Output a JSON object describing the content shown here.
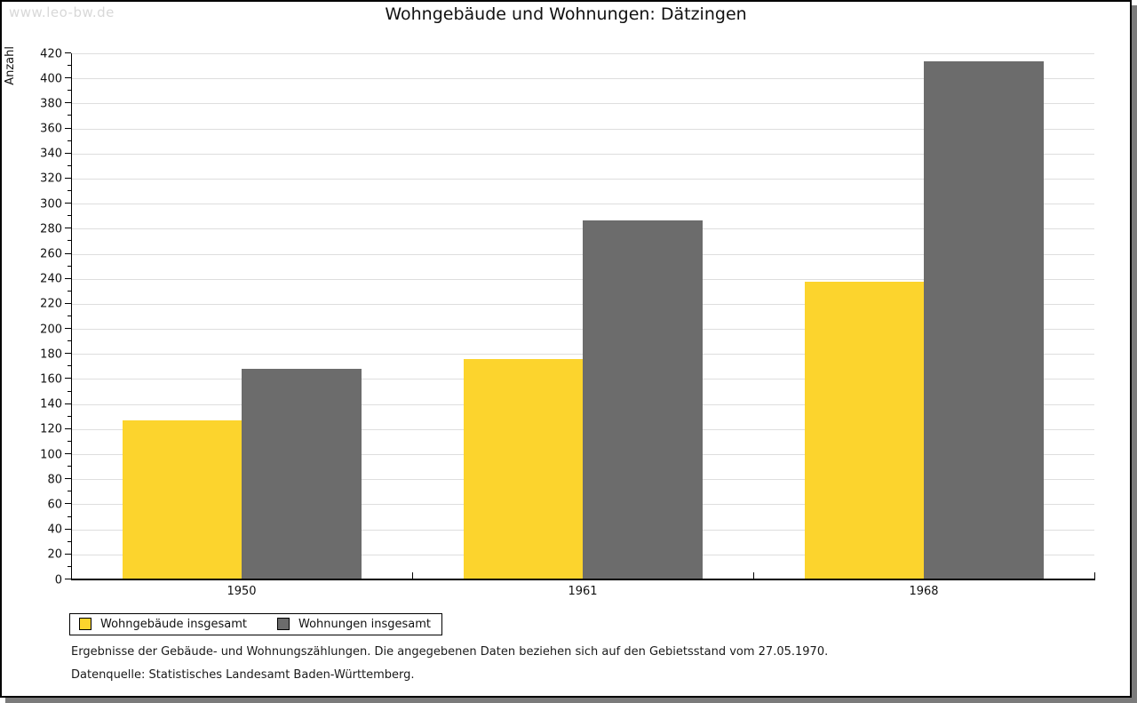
{
  "watermark": "www.leo-bw.de",
  "chart_data": {
    "type": "bar",
    "title": "Wohngebäude und Wohnungen: Dätzingen",
    "xlabel": "",
    "ylabel": "Anzahl",
    "categories": [
      "1950",
      "1961",
      "1968"
    ],
    "series": [
      {
        "name": "Wohngebäude insgesamt",
        "color": "#fcd42d",
        "values": [
          127,
          176,
          238
        ]
      },
      {
        "name": "Wohnungen insgesamt",
        "color": "#6c6c6c",
        "values": [
          168,
          287,
          414
        ]
      }
    ],
    "ylim": [
      0,
      420
    ],
    "ytick_step": 20,
    "y_minor_tick_step": 10,
    "grid": "horizontal-major-only",
    "legend_position": "bottom-left"
  },
  "footer": {
    "line1": "Ergebnisse der Gebäude- und Wohnungszählungen. Die angegebenen Daten beziehen sich auf den Gebietsstand vom 27.05.1970.",
    "line2": "Datenquelle: Statistisches Landesamt Baden-Württemberg."
  },
  "colors": {
    "gridline": "#dedede",
    "axis": "#000000",
    "watermark": "#d8d8d8",
    "shadow": "#7b7b7b"
  }
}
